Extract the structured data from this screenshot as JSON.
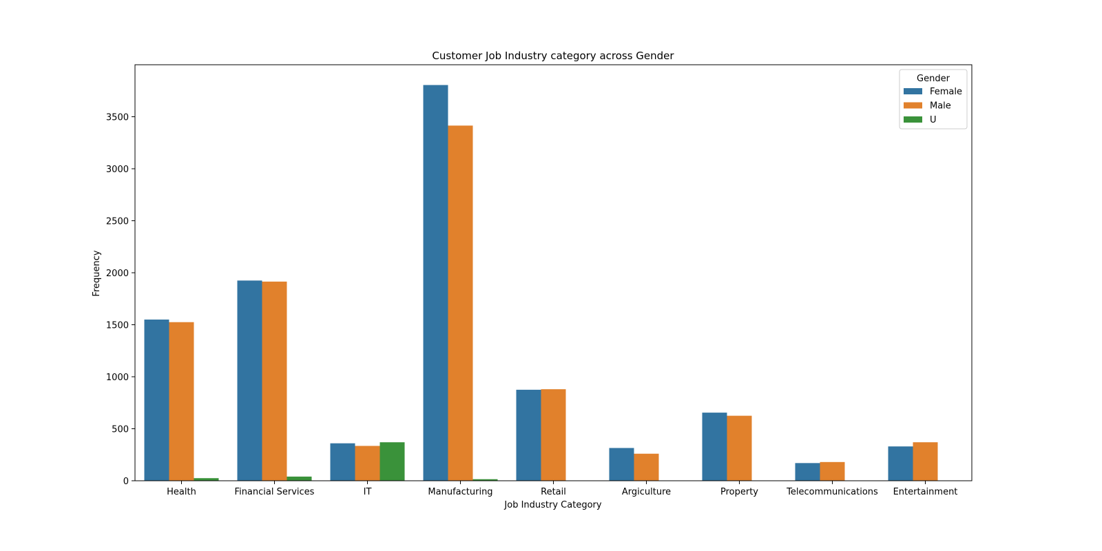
{
  "chart_data": {
    "type": "bar",
    "title": "Customer Job Industry category across Gender",
    "xlabel": "Job Industry Category",
    "ylabel": "Frequency",
    "categories": [
      "Health",
      "Financial Services",
      "IT",
      "Manufacturing",
      "Retail",
      "Argiculture",
      "Property",
      "Telecommunications",
      "Entertainment"
    ],
    "series": [
      {
        "name": "Female",
        "color": "#3274a1",
        "values": [
          1550,
          1925,
          360,
          3805,
          875,
          315,
          655,
          170,
          330
        ]
      },
      {
        "name": "Male",
        "color": "#e1812c",
        "values": [
          1525,
          1915,
          335,
          3415,
          880,
          260,
          625,
          180,
          370
        ]
      },
      {
        "name": "U",
        "color": "#3a923a",
        "values": [
          25,
          40,
          370,
          15,
          0,
          0,
          0,
          0,
          0
        ]
      }
    ],
    "ylim": [
      0,
      4000
    ],
    "yticks": [
      0,
      500,
      1000,
      1500,
      2000,
      2500,
      3000,
      3500
    ],
    "legend": {
      "title": "Gender",
      "placement": "top-right"
    },
    "grid": false
  }
}
